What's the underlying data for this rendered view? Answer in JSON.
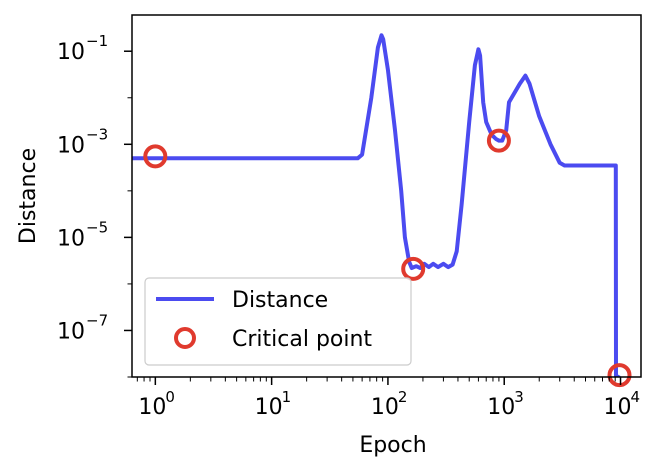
{
  "chart_data": {
    "type": "line",
    "title": "",
    "xlabel": "Epoch",
    "ylabel": "Distance",
    "xscale": "log",
    "yscale": "log",
    "xlim": [
      0.63,
      15000
    ],
    "ylim": [
      1e-08,
      0.6
    ],
    "x_ticks": [
      {
        "value": 1,
        "base": "10",
        "exp": "0"
      },
      {
        "value": 10,
        "base": "10",
        "exp": "1"
      },
      {
        "value": 100,
        "base": "10",
        "exp": "2"
      },
      {
        "value": 1000,
        "base": "10",
        "exp": "3"
      },
      {
        "value": 10000,
        "base": "10",
        "exp": "4"
      }
    ],
    "y_ticks": [
      {
        "value": 1e-07,
        "base": "10",
        "exp": "−7"
      },
      {
        "value": 1e-05,
        "base": "10",
        "exp": "−5"
      },
      {
        "value": 0.001,
        "base": "10",
        "exp": "−3"
      },
      {
        "value": 0.1,
        "base": "10",
        "exp": "−1"
      }
    ],
    "grid": false,
    "legend_position": "lower-left",
    "series": [
      {
        "name": "Distance",
        "kind": "line",
        "color": "#4b4bf0",
        "points": [
          [
            0.63,
            0.0005
          ],
          [
            55,
            0.0005
          ],
          [
            60,
            0.0006
          ],
          [
            72,
            0.01
          ],
          [
            82,
            0.12
          ],
          [
            88,
            0.22
          ],
          [
            91,
            0.18
          ],
          [
            100,
            0.04
          ],
          [
            115,
            0.002
          ],
          [
            130,
            0.0001
          ],
          [
            140,
            1e-05
          ],
          [
            152,
            3e-06
          ],
          [
            160,
            2.2e-06
          ],
          [
            175,
            2.4e-06
          ],
          [
            190,
            2.2e-06
          ],
          [
            205,
            2.7e-06
          ],
          [
            225,
            2.3e-06
          ],
          [
            245,
            2.7e-06
          ],
          [
            270,
            2.3e-06
          ],
          [
            300,
            2.7e-06
          ],
          [
            330,
            2.3e-06
          ],
          [
            360,
            2.6e-06
          ],
          [
            390,
            5e-06
          ],
          [
            430,
            5e-05
          ],
          [
            500,
            0.003
          ],
          [
            560,
            0.05
          ],
          [
            600,
            0.11
          ],
          [
            620,
            0.08
          ],
          [
            660,
            0.008
          ],
          [
            700,
            0.003
          ],
          [
            780,
            0.0016
          ],
          [
            850,
            0.0013
          ],
          [
            900,
            0.0012
          ],
          [
            960,
            0.0012
          ],
          [
            1040,
            0.002
          ],
          [
            1100,
            0.008
          ],
          [
            1230,
            0.013
          ],
          [
            1360,
            0.02
          ],
          [
            1520,
            0.03
          ],
          [
            1650,
            0.02
          ],
          [
            2000,
            0.004
          ],
          [
            2500,
            0.001
          ],
          [
            3000,
            0.0004
          ],
          [
            3300,
            0.00035
          ],
          [
            9100,
            0.00035
          ],
          [
            9150,
            1e-08
          ],
          [
            9500,
            1e-08
          ],
          [
            9700,
            1.1e-08
          ]
        ]
      },
      {
        "name": "Critical point",
        "kind": "marker",
        "color": "#e03a2e",
        "points": [
          [
            1,
            0.00055
          ],
          [
            165,
            2.1e-06
          ],
          [
            900,
            0.0012
          ],
          [
            9800,
            1.1e-08
          ]
        ]
      }
    ]
  }
}
